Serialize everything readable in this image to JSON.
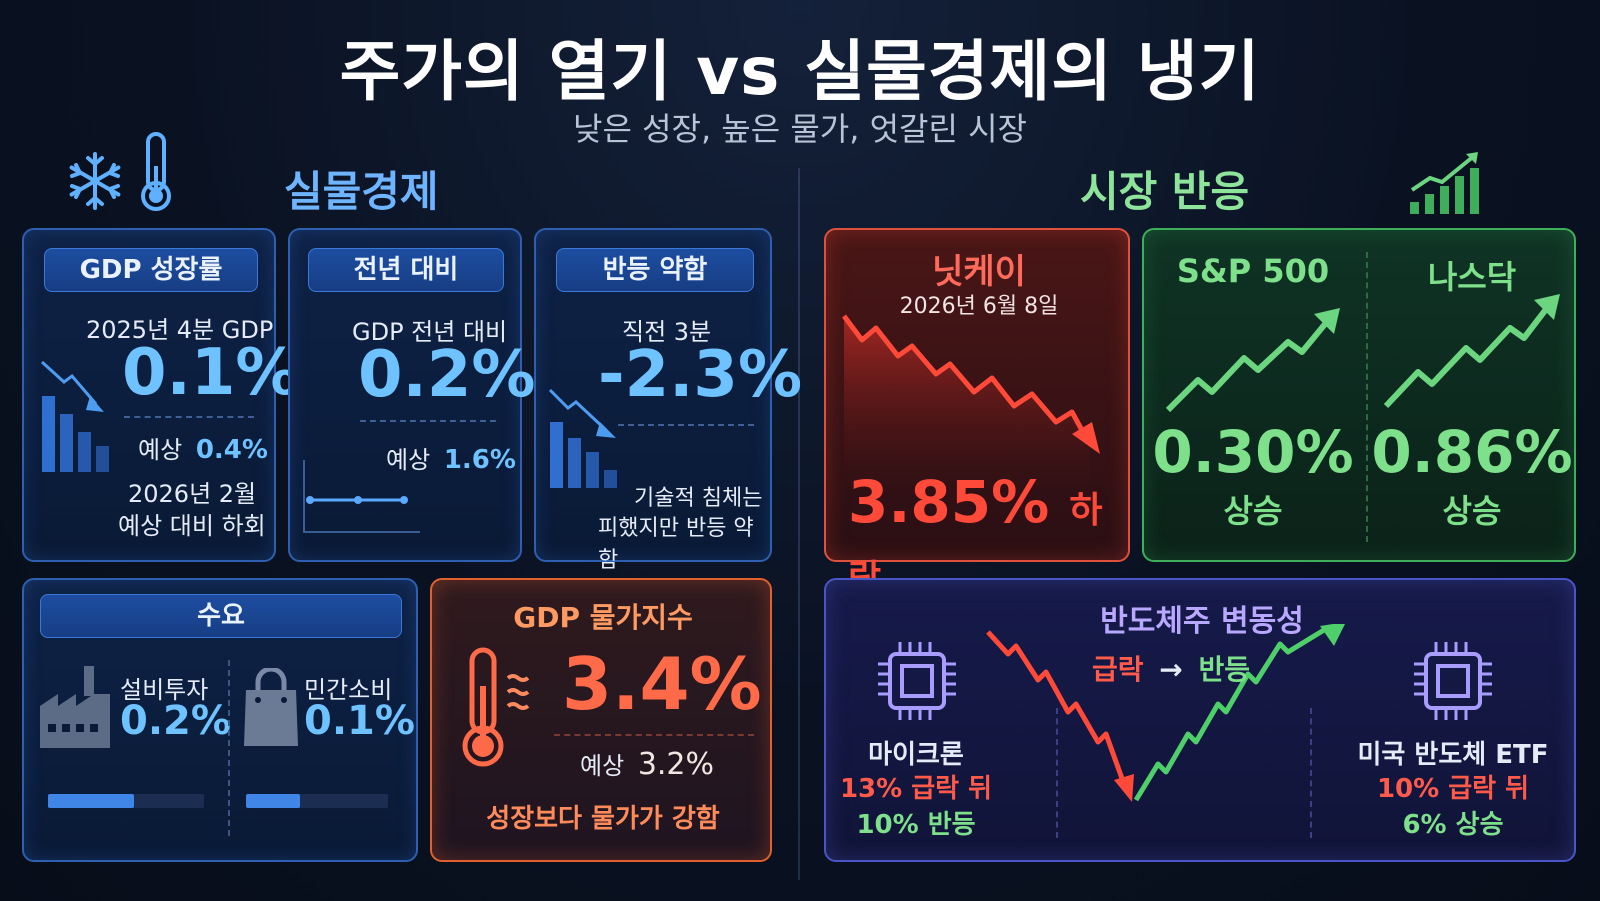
{
  "header": {
    "title": "주가의 열기 vs 실물경제의 냉기",
    "subtitle": "낮은 성장, 높은 물가, 엇갈린 시장"
  },
  "left_section": {
    "title": "실물경제"
  },
  "right_section": {
    "title": "시장 반응"
  },
  "gdp_growth": {
    "label": "GDP 성장률",
    "period": "2025년 4분 GDP",
    "value": "0.1%",
    "forecast_label": "예상",
    "forecast_value": "0.4%",
    "note_line1": "2026년 2월",
    "note_line2": "예상 대비 하회"
  },
  "yoy": {
    "label": "전년 대비",
    "desc": "GDP 전년 대비",
    "value": "0.2%",
    "forecast_label": "예상",
    "forecast_value": "1.6%"
  },
  "rebound": {
    "label": "반등 약함",
    "desc": "직전 3분",
    "value": "-2.3%",
    "note_line1": "기술적 침체는",
    "note_line2": "피했지만 반등 약함"
  },
  "demand": {
    "label": "수요",
    "capex_label": "설비투자",
    "capex_value": "0.2%",
    "capex_fill": 0.55,
    "consumption_label": "민간소비",
    "consumption_value": "0.1%",
    "consumption_fill": 0.38
  },
  "deflator": {
    "label": "GDP 물가지수",
    "value": "3.4%",
    "forecast_label": "예상",
    "forecast_value": "3.2%",
    "note": "성장보다 물가가 강함"
  },
  "nikkei": {
    "label": "닛케이",
    "date": "2026년 6월 8일",
    "value": "3.85%",
    "direction": "하락"
  },
  "sp500": {
    "label": "S&P 500",
    "value": "0.30%",
    "direction": "상승"
  },
  "nasdaq": {
    "label": "나스닥",
    "value": "0.86%",
    "direction": "상승"
  },
  "semis": {
    "title": "반도체주 변동성",
    "flow_from": "급락",
    "flow_arrow": "→",
    "flow_to": "반등",
    "micron_label": "마이크론",
    "micron_drop": "13% 급락 뒤",
    "micron_rebound": "10% 반등",
    "etf_label": "미국 반도체 ETF",
    "etf_drop": "10% 급락 뒤",
    "etf_rise": "6% 상승"
  },
  "colors": {
    "blue_accent": "#6ec2ff",
    "red_accent": "#f0503c",
    "green_accent": "#7ee08a",
    "orange_accent": "#ff6a48",
    "purple_accent": "#b9a8ff"
  }
}
